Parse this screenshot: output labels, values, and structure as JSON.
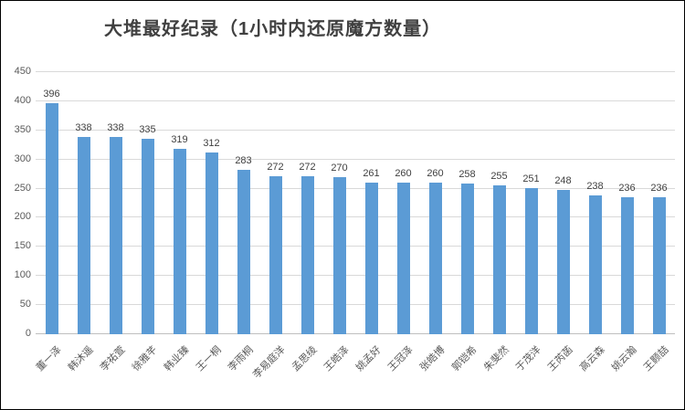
{
  "chart_data": {
    "type": "bar",
    "title": "大堆最好纪录（1小时内还原魔方数量）",
    "categories": [
      "董一泽",
      "韩沐遥",
      "李祐萱",
      "徐雅芊",
      "韩业臻",
      "王一桐",
      "李雨桐",
      "李易庭洋",
      "孟思绫",
      "王皓泽",
      "姚孟好",
      "王冠泽",
      "张皓博",
      "郭铠希",
      "朱斐然",
      "于茂洋",
      "王芮菡",
      "高云森",
      "姚云瀚",
      "王颢喆"
    ],
    "values": [
      396,
      338,
      338,
      335,
      319,
      312,
      283,
      272,
      272,
      270,
      261,
      260,
      260,
      258,
      255,
      251,
      248,
      238,
      236,
      236
    ],
    "xlabel": "",
    "ylabel": "",
    "ylim": [
      0,
      450
    ],
    "yticks": [
      0,
      50,
      100,
      150,
      200,
      250,
      300,
      350,
      400,
      450
    ],
    "grid": true,
    "legend_position": "none",
    "value_labels_shown": true,
    "bar_color": "#5b9bd5",
    "gridline_color": "#d9d9d9",
    "axis_label_color": "#595959",
    "value_label_color": "#404040",
    "title_color": "#404040"
  }
}
